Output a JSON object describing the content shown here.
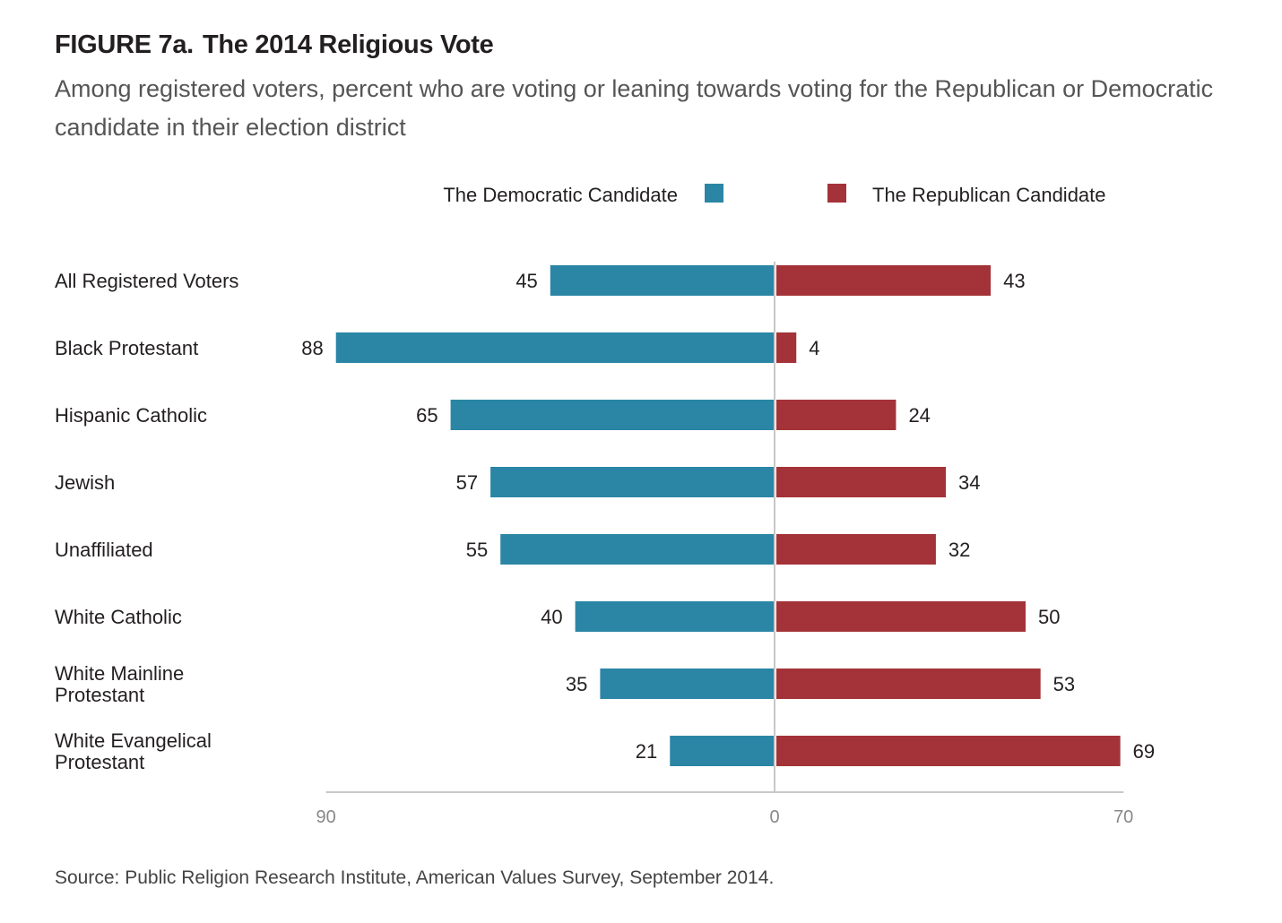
{
  "figure": {
    "label": "FIGURE 7a.",
    "title": "The 2014 Religious Vote",
    "subtitle": "Among registered voters, percent who are voting or leaning towards voting for the Republican or Democratic candidate in their election district",
    "source": "Source: Public Religion Research Institute, American Values Survey, September 2014."
  },
  "chart_data": {
    "type": "bar",
    "orientation": "horizontal-diverging",
    "categories": [
      [
        "All Registered Voters"
      ],
      [
        "Black Protestant"
      ],
      [
        "Hispanic Catholic"
      ],
      [
        "Jewish"
      ],
      [
        "Unaffiliated"
      ],
      [
        "White Catholic"
      ],
      [
        "White Mainline",
        "Protestant"
      ],
      [
        "White Evangelical",
        "Protestant"
      ]
    ],
    "series": [
      {
        "name": "The Democratic Candidate",
        "color": "#2b86a5",
        "side": "left",
        "values": [
          45,
          88,
          65,
          57,
          55,
          40,
          35,
          21
        ]
      },
      {
        "name": "The Republican Candidate",
        "color": "#a33338",
        "side": "right",
        "values": [
          43,
          4,
          24,
          34,
          32,
          50,
          53,
          69
        ]
      }
    ],
    "axis": {
      "ticks": [
        "90",
        "0",
        "70"
      ],
      "left_max": 90,
      "right_max": 70
    },
    "legend_position": "top"
  }
}
